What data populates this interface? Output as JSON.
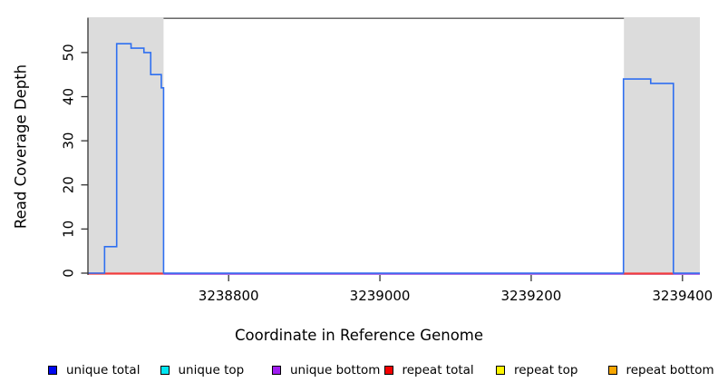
{
  "figure": {
    "background": "#ffffff"
  },
  "chart_data": {
    "type": "line",
    "subtype": "step-coverage-plot",
    "title": "",
    "xlabel": "Coordinate in Reference Genome",
    "ylabel": "Read Coverage Depth",
    "xlim": [
      3238614,
      3239423
    ],
    "ylim": [
      0,
      58
    ],
    "x_ticks": [
      3238800,
      3239000,
      3239200,
      3239400
    ],
    "y_ticks": [
      0,
      10,
      20,
      30,
      40,
      50
    ],
    "grid": false,
    "band_color": "#dcdcdc",
    "border_color": "#565656",
    "axis_color": "#333333",
    "shaded_regions": [
      [
        3238614,
        3238714
      ],
      [
        3239322,
        3239423
      ]
    ],
    "series": [
      {
        "name": "unique total",
        "render": "step",
        "stroke": "#2e6ff0",
        "points": [
          [
            3238614,
            0
          ],
          [
            3238636,
            6
          ],
          [
            3238652,
            52
          ],
          [
            3238671,
            51
          ],
          [
            3238688,
            50
          ],
          [
            3238697,
            45
          ],
          [
            3238711,
            42
          ],
          [
            3238714,
            0
          ],
          [
            3239322,
            44
          ],
          [
            3239358,
            43
          ],
          [
            3239388,
            0
          ]
        ]
      },
      {
        "name": "unique bottom",
        "render": "baseline",
        "stroke": "#9240dc",
        "value": 0,
        "segments": [
          [
            3238714,
            3239423
          ]
        ]
      },
      {
        "name": "repeat total",
        "render": "baseline",
        "stroke": "#f23c3c",
        "value": 0,
        "segments": [
          [
            3238614,
            3238714
          ],
          [
            3239322,
            3239388
          ]
        ]
      }
    ],
    "legend_position": "bottom",
    "legend": [
      {
        "label": "unique total",
        "color": "#0008f0"
      },
      {
        "label": "unique top",
        "color": "#00e6f2"
      },
      {
        "label": "unique bottom",
        "color": "#a01df0"
      },
      {
        "label": "repeat total",
        "color": "#f40000"
      },
      {
        "label": "repeat top",
        "color": "#fdf500"
      },
      {
        "label": "repeat bottom",
        "color": "#f7a600"
      }
    ]
  }
}
